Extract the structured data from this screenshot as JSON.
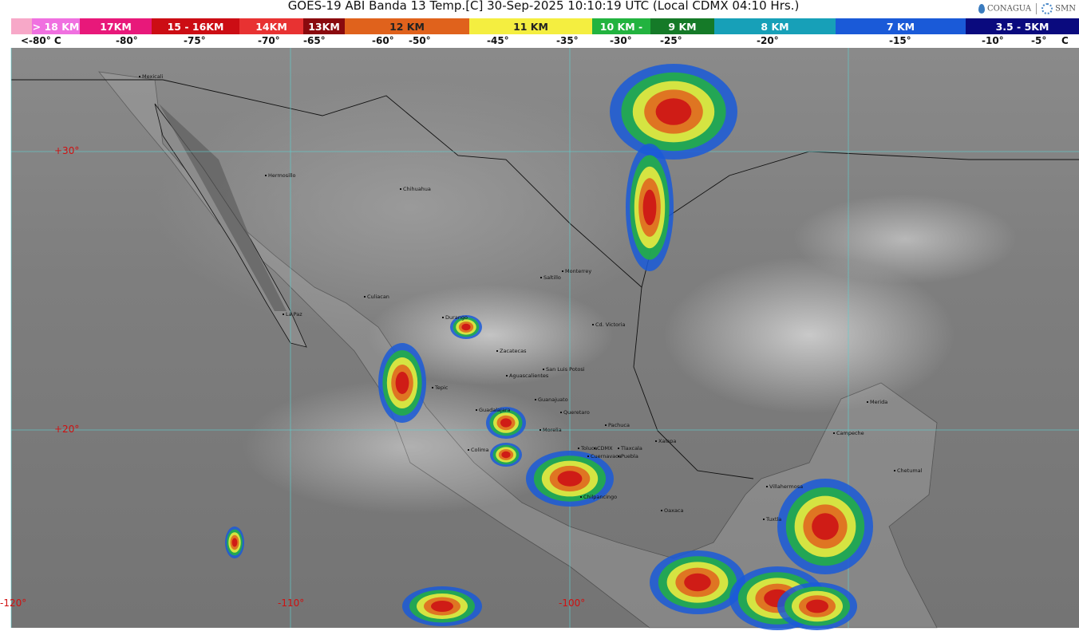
{
  "header": {
    "title": "GOES-19 ABI Banda 13 Temp.[C] 30-Sep-2025 10:10:19 UTC (Local CDMX  04:10 Hrs.)",
    "logos": [
      "CONAGUA",
      "SMN"
    ]
  },
  "legend": {
    "segments": [
      {
        "label": "",
        "color": "#f7a8c8"
      },
      {
        "label": "> 18 KM",
        "color": "#f070e0"
      },
      {
        "label": "17KM",
        "color": "#e8187a"
      },
      {
        "label": "15 - 16KM",
        "color": "#cc0d14"
      },
      {
        "label": "14KM",
        "color": "#e83232"
      },
      {
        "label": "13KM",
        "color": "#8a0a0e"
      },
      {
        "label": "12 KM",
        "color": "#e0621c"
      },
      {
        "label": "11 KM",
        "color": "#f4ee40"
      },
      {
        "label": "10 KM -",
        "color": "#22b33f"
      },
      {
        "label": "9 KM",
        "color": "#157a28"
      },
      {
        "label": "8 KM",
        "color": "#17a0b8"
      },
      {
        "label": "7 KM",
        "color": "#1a5ad8"
      },
      {
        "label": "3.5 - 5KM",
        "color": "#0a0a7e"
      }
    ],
    "temperatures": [
      "<-80° C",
      "-80°",
      "-75°",
      "-70°",
      "-65°",
      "-60°",
      "-50°",
      "-45°",
      "-35°",
      "-30°",
      "-25°",
      "-20°",
      "-15°",
      "-10°",
      "-5°",
      "C"
    ]
  },
  "map": {
    "latitude_labels": [
      "+30°",
      "+20°"
    ],
    "longitude_labels": [
      "-120°",
      "-110°",
      "-100°"
    ],
    "grid_color": "#5fd0d0",
    "cities": [
      "Mexicali",
      "Hermosillo",
      "Chihuahua",
      "Monterrey",
      "Saltillo",
      "Culiacan",
      "La Paz",
      "Durango",
      "Cd. Victoria",
      "Zacatecas",
      "San Luis Potosi",
      "Aguascalientes",
      "Tepic",
      "Guanajuato",
      "Guadalajara",
      "Queretaro",
      "Pachuca",
      "Morelia",
      "Toluca",
      "CDMX",
      "Tlaxcala",
      "Xalapa",
      "Colima",
      "Cuernavaca",
      "Puebla",
      "Chilpancingo",
      "Oaxaca",
      "Villahermosa",
      "Tuxtla",
      "Campeche",
      "Merida",
      "Chetumal"
    ]
  }
}
